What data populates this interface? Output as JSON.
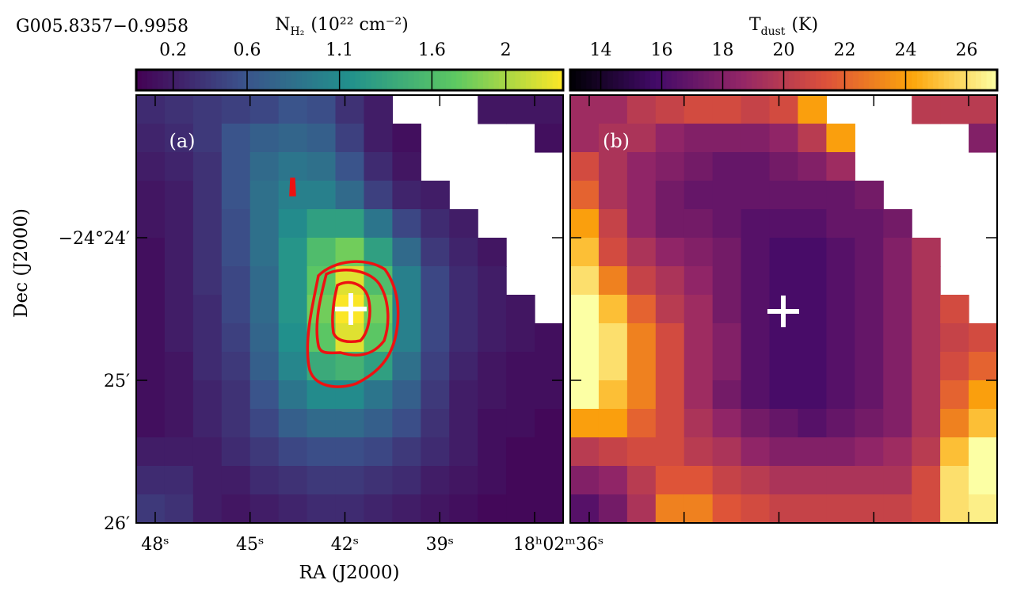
{
  "chart_data": [
    {
      "type": "heatmap",
      "title": "G005.8357−0.9958",
      "panel_label": "(a)",
      "x_label": "RA (J2000)",
      "y_label": "Dec (J2000)",
      "xlim": [
        48.6,
        35.1
      ],
      "ylim": [
        23,
        26
      ],
      "xticks": [
        {
          "value": 48,
          "label": "48ˢ"
        },
        {
          "value": 45,
          "label": "45ˢ"
        },
        {
          "value": 42,
          "label": "42ˢ"
        },
        {
          "value": 39,
          "label": "39ˢ"
        },
        {
          "value": 36,
          "label": "18ʰ02ᵐ36ˢ"
        }
      ],
      "yticks": [
        {
          "value": 24,
          "label": "−24°24′"
        },
        {
          "value": 25,
          "label": "25′"
        },
        {
          "value": 26,
          "label": "26′"
        }
      ],
      "colorbar": {
        "label": "N",
        "label_sub": "H₂",
        "label_unit": "(10²² cm⁻²)",
        "colormap": "viridis",
        "clim": [
          0,
          2.31
        ],
        "ticks": [
          0.2,
          0.6,
          1.1,
          1.6,
          2.0
        ]
      },
      "values": [
        [
          0.3,
          0.35,
          0.4,
          0.45,
          0.5,
          0.6,
          0.55,
          0.35,
          0.2,
          null,
          null,
          null,
          0.15,
          0.15,
          0.15
        ],
        [
          0.25,
          0.3,
          0.4,
          0.6,
          0.7,
          0.75,
          0.7,
          0.45,
          0.2,
          0.1,
          null,
          null,
          null,
          null,
          0.1
        ],
        [
          0.2,
          0.25,
          0.35,
          0.6,
          0.8,
          0.9,
          0.85,
          0.6,
          0.3,
          0.15,
          null,
          null,
          null,
          null,
          null
        ],
        [
          0.15,
          0.2,
          0.35,
          0.6,
          0.85,
          1.0,
          1.0,
          0.8,
          0.45,
          0.25,
          0.2,
          null,
          null,
          null,
          null
        ],
        [
          0.15,
          0.2,
          0.35,
          0.55,
          0.85,
          1.1,
          1.3,
          1.3,
          0.9,
          0.5,
          0.3,
          0.2,
          null,
          null,
          null
        ],
        [
          0.1,
          0.2,
          0.35,
          0.55,
          0.85,
          1.2,
          1.6,
          1.8,
          1.3,
          0.8,
          0.4,
          0.25,
          0.15,
          null,
          null
        ],
        [
          0.1,
          0.2,
          0.35,
          0.5,
          0.8,
          1.2,
          1.7,
          2.2,
          1.6,
          1.0,
          0.5,
          0.3,
          0.2,
          null,
          null
        ],
        [
          0.1,
          0.2,
          0.3,
          0.5,
          0.8,
          1.2,
          1.8,
          2.3,
          1.8,
          1.0,
          0.5,
          0.3,
          0.2,
          0.15,
          null
        ],
        [
          0.1,
          0.2,
          0.3,
          0.45,
          0.75,
          1.15,
          1.7,
          2.2,
          1.7,
          1.0,
          0.5,
          0.3,
          0.2,
          0.15,
          0.1
        ],
        [
          0.1,
          0.15,
          0.3,
          0.4,
          0.7,
          1.05,
          1.4,
          1.5,
          1.3,
          0.85,
          0.45,
          0.25,
          0.15,
          0.1,
          0.1
        ],
        [
          0.1,
          0.15,
          0.25,
          0.35,
          0.6,
          0.9,
          1.1,
          1.1,
          0.9,
          0.7,
          0.4,
          0.2,
          0.15,
          0.1,
          0.1
        ],
        [
          0.1,
          0.15,
          0.25,
          0.35,
          0.5,
          0.7,
          0.8,
          0.8,
          0.7,
          0.55,
          0.35,
          0.2,
          0.1,
          0.1,
          0.05
        ],
        [
          0.2,
          0.2,
          0.2,
          0.3,
          0.4,
          0.5,
          0.55,
          0.55,
          0.5,
          0.4,
          0.3,
          0.2,
          0.1,
          0.05,
          0.05
        ],
        [
          0.3,
          0.3,
          0.2,
          0.2,
          0.3,
          0.35,
          0.4,
          0.4,
          0.35,
          0.3,
          0.2,
          0.15,
          0.1,
          0.05,
          0.05
        ],
        [
          0.4,
          0.35,
          0.2,
          0.15,
          0.2,
          0.25,
          0.3,
          0.3,
          0.25,
          0.2,
          0.15,
          0.1,
          0.05,
          0.05,
          0.05
        ]
      ]
    },
    {
      "type": "heatmap",
      "panel_label": "(b)",
      "colorbar": {
        "label": "T",
        "label_sub": "dust",
        "label_unit": "(K)",
        "colormap": "inferno",
        "clim": [
          13,
          27
        ],
        "ticks": [
          14,
          16,
          18,
          20,
          22,
          24,
          26
        ]
      },
      "values": [
        [
          19,
          19,
          20,
          20.5,
          21,
          21,
          20.5,
          21,
          24,
          null,
          null,
          null,
          20,
          20,
          20
        ],
        [
          19,
          19.5,
          19.5,
          18.5,
          18,
          18,
          18,
          18.5,
          20,
          24,
          null,
          null,
          null,
          null,
          18
        ],
        [
          21,
          19.5,
          18.5,
          18,
          17.5,
          17,
          17,
          17.5,
          18,
          19,
          null,
          null,
          null,
          null,
          null
        ],
        [
          22,
          19.5,
          18.5,
          17.5,
          17,
          17,
          17,
          17,
          17,
          17,
          17.5,
          null,
          null,
          null,
          null
        ],
        [
          24,
          20.5,
          18.5,
          17.5,
          17.5,
          17,
          16.5,
          16.5,
          16.5,
          17,
          17,
          17.5,
          null,
          null,
          null
        ],
        [
          25,
          21,
          19.5,
          18.5,
          18,
          17.5,
          16.5,
          16,
          16,
          16.5,
          17,
          18,
          19.5,
          null,
          null
        ],
        [
          26,
          23,
          20.5,
          19.5,
          18.5,
          17.5,
          16.5,
          16,
          16,
          16.5,
          17,
          18,
          19.5,
          null,
          null
        ],
        [
          27,
          25,
          22,
          20,
          19,
          17.5,
          16.5,
          16,
          16,
          16.5,
          17,
          18,
          19.5,
          21,
          null
        ],
        [
          27,
          26,
          23,
          21,
          19,
          18,
          16.5,
          16,
          16,
          16.5,
          17,
          18,
          19.5,
          20.5,
          21
        ],
        [
          27,
          26,
          23,
          21,
          19,
          18,
          16.5,
          16,
          16,
          16.5,
          17,
          18,
          19.5,
          21,
          22
        ],
        [
          27,
          25,
          23,
          21,
          19,
          17.5,
          16.5,
          16,
          16,
          16.5,
          17,
          18,
          19.5,
          22,
          24
        ],
        [
          24,
          24,
          22,
          21,
          19.5,
          18.5,
          17.5,
          17,
          16.5,
          17,
          17.5,
          18,
          19.5,
          23,
          25
        ],
        [
          20,
          20.5,
          21,
          21,
          20,
          19.5,
          18.5,
          18,
          18,
          18,
          18.5,
          19,
          20,
          25,
          27
        ],
        [
          18,
          18.5,
          20,
          21.5,
          21.5,
          20.5,
          20,
          19.5,
          19.5,
          19.5,
          19.5,
          19.5,
          21,
          26,
          27
        ],
        [
          16.5,
          17.5,
          19.5,
          23,
          23,
          21.5,
          21,
          20.5,
          20.5,
          20.5,
          20.5,
          20.5,
          21,
          26,
          26.5
        ]
      ]
    }
  ]
}
